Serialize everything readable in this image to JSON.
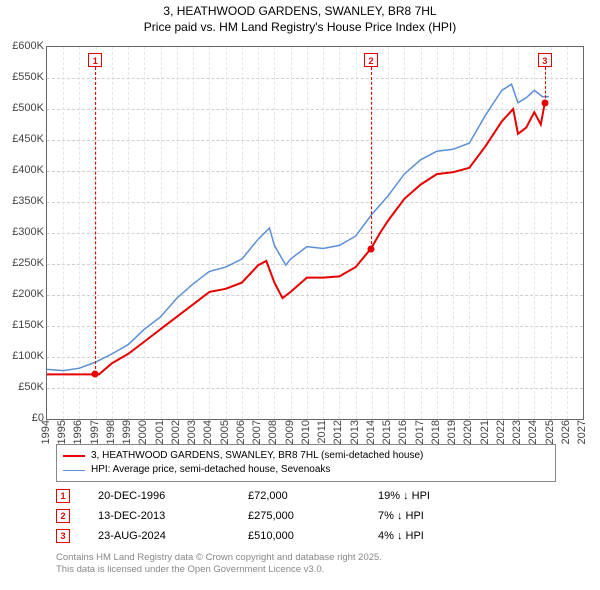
{
  "title": {
    "line1": "3, HEATHWOOD GARDENS, SWANLEY, BR8 7HL",
    "line2": "Price paid vs. HM Land Registry's House Price Index (HPI)",
    "fontsize": 12,
    "color": "#000000"
  },
  "chart": {
    "type": "line",
    "background_color": "#ffffff",
    "border_color": "#666666",
    "grid_color_h": "#cfcfcf",
    "grid_color_v": "#e6e6e6",
    "ylim": [
      0,
      600000
    ],
    "ytick_step": 50000,
    "yticks": [
      "£0",
      "£50K",
      "£100K",
      "£150K",
      "£200K",
      "£250K",
      "£300K",
      "£350K",
      "£400K",
      "£450K",
      "£500K",
      "£550K",
      "£600K"
    ],
    "xlim": [
      1994,
      2027
    ],
    "xticks": [
      1994,
      1995,
      1996,
      1997,
      1998,
      1999,
      2000,
      2001,
      2002,
      2003,
      2004,
      2005,
      2006,
      2007,
      2008,
      2009,
      2010,
      2011,
      2012,
      2013,
      2014,
      2015,
      2016,
      2017,
      2018,
      2019,
      2020,
      2021,
      2022,
      2023,
      2024,
      2025,
      2026,
      2027
    ],
    "axis_fontsize": 11,
    "axis_color": "#444444",
    "series": [
      {
        "name": "price_paid",
        "label": "3, HEATHWOOD GARDENS, SWANLEY, BR8 7HL (semi-detached house)",
        "color": "#e60000",
        "line_width": 2,
        "points": [
          [
            1994,
            72000
          ],
          [
            1995,
            72000
          ],
          [
            1996,
            72000
          ],
          [
            1996.97,
            72000
          ],
          [
            1997.2,
            72000
          ],
          [
            1998,
            90000
          ],
          [
            1999,
            105000
          ],
          [
            2000,
            125000
          ],
          [
            2001,
            145000
          ],
          [
            2002,
            165000
          ],
          [
            2003,
            185000
          ],
          [
            2004,
            205000
          ],
          [
            2005,
            210000
          ],
          [
            2006,
            220000
          ],
          [
            2007,
            248000
          ],
          [
            2007.5,
            255000
          ],
          [
            2008,
            220000
          ],
          [
            2008.5,
            195000
          ],
          [
            2009,
            205000
          ],
          [
            2010,
            228000
          ],
          [
            2011,
            228000
          ],
          [
            2012,
            230000
          ],
          [
            2013,
            245000
          ],
          [
            2013.95,
            275000
          ],
          [
            2014.5,
            300000
          ],
          [
            2015,
            320000
          ],
          [
            2016,
            355000
          ],
          [
            2017,
            378000
          ],
          [
            2018,
            395000
          ],
          [
            2019,
            398000
          ],
          [
            2020,
            405000
          ],
          [
            2021,
            440000
          ],
          [
            2022,
            480000
          ],
          [
            2022.7,
            500000
          ],
          [
            2023,
            460000
          ],
          [
            2023.5,
            470000
          ],
          [
            2024,
            495000
          ],
          [
            2024.4,
            475000
          ],
          [
            2024.65,
            510000
          ]
        ]
      },
      {
        "name": "hpi",
        "label": "HPI: Average price, semi-detached house, Sevenoaks",
        "color": "#5b8fd6",
        "line_width": 1.5,
        "points": [
          [
            1994,
            80000
          ],
          [
            1995,
            78000
          ],
          [
            1996,
            82000
          ],
          [
            1997,
            92000
          ],
          [
            1998,
            105000
          ],
          [
            1999,
            120000
          ],
          [
            2000,
            145000
          ],
          [
            2001,
            165000
          ],
          [
            2002,
            195000
          ],
          [
            2003,
            218000
          ],
          [
            2004,
            238000
          ],
          [
            2005,
            245000
          ],
          [
            2006,
            258000
          ],
          [
            2007,
            290000
          ],
          [
            2007.7,
            308000
          ],
          [
            2008,
            280000
          ],
          [
            2008.7,
            248000
          ],
          [
            2009,
            258000
          ],
          [
            2010,
            278000
          ],
          [
            2011,
            275000
          ],
          [
            2012,
            280000
          ],
          [
            2013,
            295000
          ],
          [
            2014,
            330000
          ],
          [
            2015,
            360000
          ],
          [
            2016,
            395000
          ],
          [
            2017,
            418000
          ],
          [
            2018,
            432000
          ],
          [
            2019,
            435000
          ],
          [
            2020,
            445000
          ],
          [
            2021,
            490000
          ],
          [
            2022,
            530000
          ],
          [
            2022.6,
            540000
          ],
          [
            2023,
            510000
          ],
          [
            2023.5,
            518000
          ],
          [
            2024,
            530000
          ],
          [
            2024.5,
            520000
          ],
          [
            2024.9,
            520000
          ]
        ]
      }
    ],
    "markers": [
      {
        "n": "1",
        "year": 1996.97,
        "price": 72000,
        "color": "#e60000",
        "box_top": 50000
      },
      {
        "n": "2",
        "year": 2013.95,
        "price": 275000,
        "color": "#e60000",
        "box_top": 50000
      },
      {
        "n": "3",
        "year": 2024.65,
        "price": 510000,
        "color": "#e60000",
        "box_top": 50000
      }
    ]
  },
  "legend": {
    "border_color": "#888888",
    "fontsize": 10
  },
  "datapoints": [
    {
      "n": "1",
      "color": "#e60000",
      "date": "20-DEC-1996",
      "price": "£72,000",
      "diff": "19% ↓ HPI"
    },
    {
      "n": "2",
      "color": "#e60000",
      "date": "13-DEC-2013",
      "price": "£275,000",
      "diff": "7% ↓ HPI"
    },
    {
      "n": "3",
      "color": "#e60000",
      "date": "23-AUG-2024",
      "price": "£510,000",
      "diff": "4% ↓ HPI"
    }
  ],
  "footer": {
    "line1": "Contains HM Land Registry data © Crown copyright and database right 2025.",
    "line2": "This data is licensed under the Open Government Licence v3.0.",
    "color": "#888888",
    "fontsize": 9.5
  }
}
